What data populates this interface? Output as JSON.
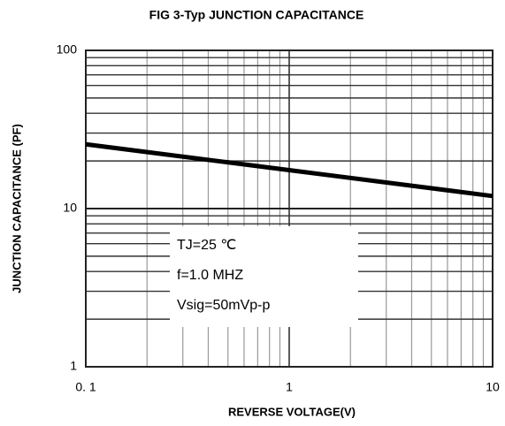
{
  "chart_data": {
    "type": "line",
    "title": "FIG 3-Typ JUNCTION  CAPACITANCE",
    "xlabel": "REVERSE VOLTAGE(V)",
    "ylabel": "JUNCTION CAPACITANCE (PF)",
    "x": [
      0.1,
      1,
      10
    ],
    "series": [
      {
        "name": "Junction capacitance",
        "color": "#000000",
        "values": [
          25.5,
          17.5,
          12
        ]
      }
    ],
    "xlim": [
      0.1,
      10
    ],
    "ylim": [
      1,
      100
    ],
    "xscale": "log",
    "yscale": "log",
    "xticks": [
      {
        "value": 0.1,
        "label": "0. 1"
      },
      1,
      10
    ],
    "yticks": [
      1,
      10,
      100
    ],
    "minor_xticks": [
      0.2,
      0.3,
      0.4,
      0.5,
      0.6,
      0.7,
      0.8,
      0.9,
      2,
      3,
      4,
      5,
      6,
      7,
      8,
      9
    ],
    "minor_yticks": [
      2,
      3,
      4,
      5,
      6,
      7,
      8,
      9,
      20,
      30,
      40,
      50,
      60,
      70,
      80,
      90
    ],
    "grid": true,
    "annotations": [
      "TJ=25 ℃",
      "f=1.0 MHZ",
      "Vsig=50mVp-p"
    ]
  }
}
